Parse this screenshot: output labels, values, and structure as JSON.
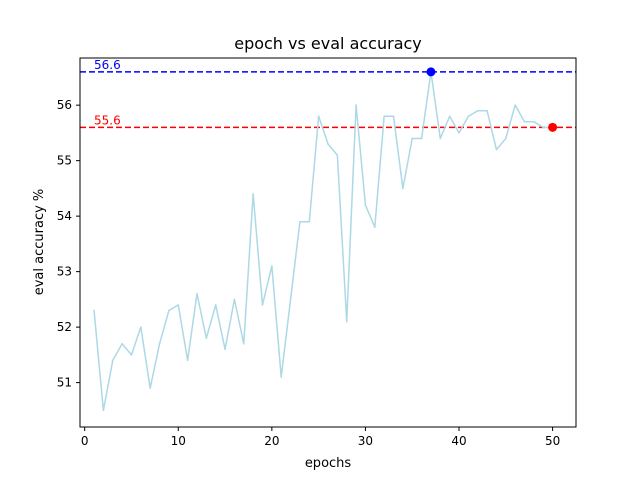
{
  "chart_data": {
    "type": "line",
    "title": "epoch vs eval accuracy",
    "xlabel": "epochs",
    "ylabel": "eval accuracy %",
    "xlim": [
      -0.5,
      52.5
    ],
    "ylim": [
      50.2,
      56.85
    ],
    "xticks": [
      0,
      10,
      20,
      30,
      40,
      50
    ],
    "yticks": [
      51,
      52,
      53,
      54,
      55,
      56
    ],
    "grid": false,
    "colors": {
      "series": "#add8e6",
      "max": "#0000ff",
      "last": "#ff0000",
      "axes": "#000000"
    },
    "series": [
      {
        "x": [
          1,
          2,
          3,
          4,
          5,
          6,
          7,
          8,
          9,
          10,
          11,
          12,
          13,
          14,
          15,
          16,
          17,
          18,
          19,
          20,
          21,
          22,
          23,
          24,
          25,
          26,
          27,
          28,
          29,
          30,
          31,
          32,
          33,
          34,
          35,
          36,
          37,
          38,
          39,
          40,
          41,
          42,
          43,
          44,
          45,
          46,
          47,
          48,
          49,
          50
        ],
        "values": [
          52.3,
          50.5,
          51.4,
          51.7,
          51.5,
          52.0,
          50.9,
          51.7,
          52.3,
          52.4,
          51.4,
          52.6,
          51.8,
          52.4,
          51.6,
          52.5,
          51.7,
          54.4,
          52.4,
          53.1,
          51.1,
          52.5,
          53.9,
          53.9,
          55.8,
          55.3,
          55.1,
          52.1,
          56.0,
          54.2,
          53.8,
          55.8,
          55.8,
          54.5,
          55.4,
          55.4,
          56.6,
          55.4,
          55.8,
          55.5,
          55.8,
          55.9,
          55.9,
          55.2,
          55.4,
          56.0,
          55.7,
          55.7,
          55.6,
          55.6
        ]
      }
    ],
    "reference_lines": [
      {
        "value": 56.6,
        "label": "56.6",
        "color": "#0000ff",
        "marker_x": 37
      },
      {
        "value": 55.6,
        "label": "55.6",
        "color": "#ff0000",
        "marker_x": 50
      }
    ]
  }
}
